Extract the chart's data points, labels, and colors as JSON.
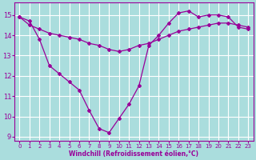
{
  "background_color": "#aadddd",
  "grid_color": "#ffffff",
  "line_color": "#990099",
  "xlabel": "Windchill (Refroidissement éolien,°C)",
  "ylim": [
    8.8,
    15.6
  ],
  "xlim": [
    -0.5,
    23.5
  ],
  "yticks": [
    9,
    10,
    11,
    12,
    13,
    14,
    15
  ],
  "xticks": [
    0,
    1,
    2,
    3,
    4,
    5,
    6,
    7,
    8,
    9,
    10,
    11,
    12,
    13,
    14,
    15,
    16,
    17,
    18,
    19,
    20,
    21,
    22,
    23
  ],
  "line1_x": [
    0,
    1,
    2,
    3,
    4,
    5,
    6,
    7,
    8,
    9,
    10,
    11,
    12,
    13,
    14,
    15,
    16,
    17,
    18,
    19,
    20,
    21,
    22,
    23
  ],
  "line1_y": [
    14.9,
    14.7,
    13.8,
    12.5,
    12.1,
    11.7,
    11.3,
    10.3,
    9.4,
    9.2,
    9.9,
    10.6,
    11.5,
    13.5,
    14.0,
    14.6,
    15.1,
    15.2,
    14.9,
    15.0,
    15.0,
    14.9,
    14.4,
    14.3
  ],
  "line2_x": [
    0,
    1,
    2,
    3,
    4,
    5,
    6,
    7,
    8,
    9,
    10,
    11,
    12,
    13,
    14,
    15,
    16,
    17,
    18,
    19,
    20,
    21,
    22,
    23
  ],
  "line2_y": [
    14.9,
    14.5,
    14.3,
    14.1,
    14.0,
    13.9,
    13.8,
    13.6,
    13.5,
    13.3,
    13.2,
    13.3,
    13.5,
    13.6,
    13.8,
    14.0,
    14.2,
    14.3,
    14.4,
    14.5,
    14.6,
    14.6,
    14.5,
    14.4
  ]
}
